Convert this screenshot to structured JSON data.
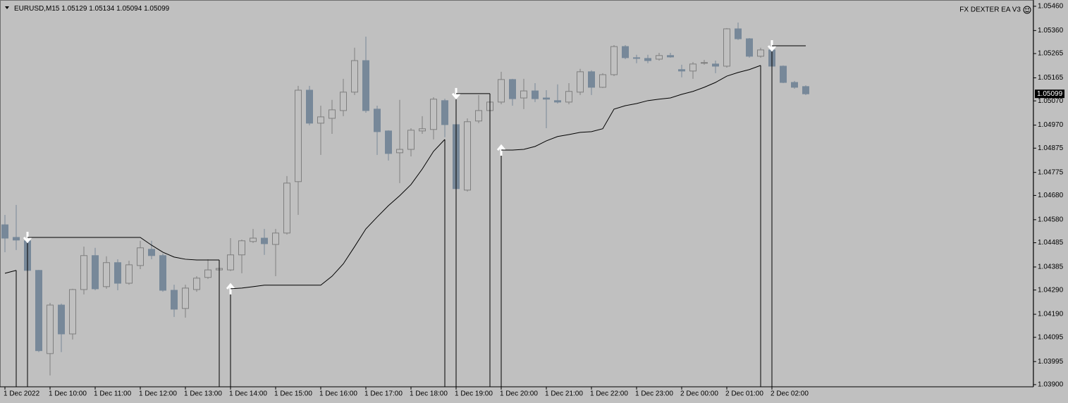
{
  "chart_data": {
    "type": "candlestick",
    "title": "EURUSD,M15",
    "annotation": "FX DEXTER EA V3",
    "categories": [
      "1 Dec 2022",
      null,
      null,
      null,
      "1 Dec 10:00",
      null,
      null,
      null,
      "1 Dec 11:00",
      null,
      null,
      null,
      "1 Dec 12:00",
      null,
      null,
      null,
      "1 Dec 13:00",
      null,
      null,
      null,
      "1 Dec 14:00",
      null,
      null,
      null,
      "1 Dec 15:00",
      null,
      null,
      null,
      "1 Dec 16:00",
      null,
      null,
      null,
      "1 Dec 17:00",
      null,
      null,
      null,
      "1 Dec 18:00",
      null,
      null,
      null,
      "1 Dec 19:00",
      null,
      null,
      null,
      "1 Dec 20:00",
      null,
      null,
      null,
      "1 Dec 21:00",
      null,
      null,
      null,
      "1 Dec 22:00",
      null,
      null,
      null,
      "1 Dec 23:00",
      null,
      null,
      null,
      "2 Dec 00:00",
      null,
      null,
      null,
      "2 Dec 01:00",
      null,
      null,
      null,
      "2 Dec 02:00",
      null,
      null,
      null
    ],
    "open": [
      1.04559,
      1.04507,
      1.04493,
      1.04371,
      1.04028,
      1.04228,
      1.04109,
      1.04292,
      1.04432,
      1.04304,
      1.04403,
      1.04318,
      1.04391,
      1.04458,
      1.04432,
      1.04289,
      1.04214,
      1.04292,
      1.04342,
      1.04373,
      1.04373,
      1.04435,
      1.0449,
      1.04504,
      1.04478,
      1.04525,
      1.04737,
      1.05114,
      1.04978,
      1.04998,
      1.0503,
      1.05106,
      1.05236,
      1.05036,
      1.04946,
      1.04856,
      1.0487,
      1.04946,
      1.04952,
      1.05071,
      1.04972,
      1.04702,
      1.04987,
      1.0503,
      1.05065,
      1.05158,
      1.05082,
      1.05111,
      1.05082,
      1.05071,
      1.05065,
      1.05106,
      1.0519,
      1.05126,
      1.05178,
      1.05294,
      1.05248,
      1.05245,
      1.05242,
      1.05257,
      1.05199,
      1.05193,
      1.05225,
      1.05222,
      1.05213,
      1.05367,
      1.05326,
      1.05254,
      1.0528,
      1.05213,
      1.05146,
      1.05129
    ],
    "high": [
      1.046,
      1.04641,
      1.04528,
      1.04373,
      1.04237,
      1.04234,
      1.04295,
      1.04469,
      1.04464,
      1.04429,
      1.04417,
      1.04411,
      1.04493,
      1.04493,
      1.0444,
      1.04312,
      1.04312,
      1.04347,
      1.04417,
      1.04388,
      1.04504,
      1.04498,
      1.04542,
      1.04542,
      1.04542,
      1.0476,
      1.05132,
      1.05132,
      1.0505,
      1.05074,
      1.05161,
      1.05289,
      1.05335,
      1.0505,
      1.04949,
      1.05074,
      1.04957,
      1.05007,
      1.05085,
      1.05079,
      1.05085,
      1.04998,
      1.05094,
      1.05085,
      1.0519,
      1.05161,
      1.05161,
      1.05143,
      1.05114,
      1.05138,
      1.05143,
      1.05202,
      1.05196,
      1.05184,
      1.053,
      1.053,
      1.0526,
      1.0526,
      1.05268,
      1.05268,
      1.05219,
      1.0523,
      1.05239,
      1.05236,
      1.0537,
      1.05393,
      1.05329,
      1.05289,
      1.05312,
      1.05216,
      1.05152,
      1.05134
    ],
    "low": [
      1.04446,
      1.04455,
      1.04365,
      1.04034,
      1.03938,
      1.04034,
      1.04086,
      1.04272,
      1.04289,
      1.04295,
      1.04289,
      1.04312,
      1.04376,
      1.04417,
      1.04283,
      1.04179,
      1.04176,
      1.04283,
      1.04336,
      1.04368,
      1.04368,
      1.04359,
      1.04484,
      1.04435,
      1.04347,
      1.04519,
      1.046,
      1.04969,
      1.04847,
      1.04934,
      1.05007,
      1.05094,
      1.05021,
      1.04847,
      1.04824,
      1.04731,
      1.04841,
      1.04934,
      1.04911,
      1.0492,
      1.04702,
      1.04696,
      1.04978,
      1.05021,
      1.05056,
      1.0505,
      1.05036,
      1.05065,
      1.04957,
      1.05059,
      1.05056,
      1.05094,
      1.05094,
      1.05123,
      1.05172,
      1.05242,
      1.05225,
      1.05225,
      1.05236,
      1.05248,
      1.05167,
      1.05161,
      1.05219,
      1.05184,
      1.05207,
      1.05321,
      1.05248,
      1.05248,
      1.0521,
      1.05143,
      1.0512,
      1.05094
    ],
    "close": [
      1.04504,
      1.04496,
      1.04371,
      1.0404,
      1.04228,
      1.04109,
      1.04292,
      1.04432,
      1.04295,
      1.04403,
      1.04318,
      1.04394,
      1.04464,
      1.04432,
      1.04289,
      1.04211,
      1.04298,
      1.04339,
      1.04373,
      1.04379,
      1.04435,
      1.04493,
      1.04504,
      1.04481,
      1.04525,
      1.04731,
      1.05114,
      1.04978,
      1.05004,
      1.05033,
      1.05106,
      1.05236,
      1.0503,
      1.04943,
      1.04853,
      1.0487,
      1.04949,
      1.04955,
      1.05077,
      1.04972,
      1.04708,
      1.04984,
      1.0503,
      1.05065,
      1.05158,
      1.05079,
      1.05111,
      1.05079,
      1.05077,
      1.05065,
      1.05109,
      1.0519,
      1.05126,
      1.05178,
      1.05294,
      1.05248,
      1.05245,
      1.05236,
      1.05257,
      1.05251,
      1.05193,
      1.05222,
      1.05228,
      1.05213,
      1.05367,
      1.05326,
      1.05254,
      1.0528,
      1.05213,
      1.05146,
      1.05126,
      1.05099
    ],
    "up_color": "#c0c0c0",
    "down_color": "#778899",
    "lines": [
      {
        "color": "#000000",
        "values": [
          1.04359,
          1.04371,
          null,
          null,
          null,
          null,
          null,
          null,
          null,
          null,
          null,
          null,
          null,
          null,
          null,
          null,
          null,
          null,
          null,
          null,
          1.04295,
          1.04298,
          1.04304,
          1.0431,
          1.0431,
          1.0431,
          1.0431,
          1.0431,
          1.0431,
          1.04347,
          1.04398,
          1.04469,
          1.04542,
          1.04591,
          1.04638,
          1.04679,
          1.04725,
          1.04789,
          1.04862,
          1.04911,
          null,
          null,
          null,
          null,
          1.04867,
          1.04867,
          1.0487,
          1.04882,
          1.04905,
          1.04923,
          1.04931,
          1.0494,
          1.04943,
          1.04955,
          1.05036,
          1.0505,
          1.05059,
          1.05071,
          1.05077,
          1.05082,
          1.05097,
          1.05109,
          1.05126,
          1.05146,
          1.05172,
          1.05187,
          1.05199,
          1.05216,
          null,
          null,
          null,
          null
        ]
      },
      {
        "color": "#000000",
        "values": [
          null,
          null,
          1.04507,
          1.04507,
          1.04507,
          1.04507,
          1.04507,
          1.04507,
          1.04507,
          1.04507,
          1.04507,
          1.04507,
          1.04507,
          1.04475,
          1.04446,
          1.04426,
          1.04417,
          1.04414,
          1.04414,
          1.04414,
          null,
          null,
          null,
          null,
          null,
          null,
          null,
          null,
          null,
          null,
          null,
          null,
          null,
          null,
          null,
          null,
          null,
          null,
          null,
          null,
          1.051,
          1.051,
          1.051,
          1.051,
          null,
          null,
          null,
          null,
          null,
          null,
          null,
          null,
          null,
          null,
          null,
          null,
          null,
          null,
          null,
          null,
          null,
          null,
          null,
          null,
          null,
          null,
          null,
          null,
          1.05297,
          1.05297,
          1.05297,
          1.05297
        ]
      }
    ],
    "ylim": [
      1.03891,
      1.05483
    ],
    "yticks": [
      {
        "value": 1.0546,
        "label": "1.05460"
      },
      {
        "value": 1.0536,
        "label": "1.05360"
      },
      1.05265,
      1.05165,
      {
        "value": 1.0507,
        "label": "1.05070"
      },
      {
        "value": 1.0497,
        "label": "1.04970"
      },
      1.04875,
      1.04775,
      {
        "value": 1.0468,
        "label": "1.04680"
      },
      {
        "value": 1.0458,
        "label": "1.04580"
      },
      1.04485,
      1.04385,
      {
        "value": 1.0429,
        "label": "1.04290"
      },
      {
        "value": 1.0419,
        "label": "1.04190"
      },
      1.04095,
      1.03995,
      {
        "value": 1.039,
        "label": "1.03900"
      }
    ],
    "grid": false
  }
}
